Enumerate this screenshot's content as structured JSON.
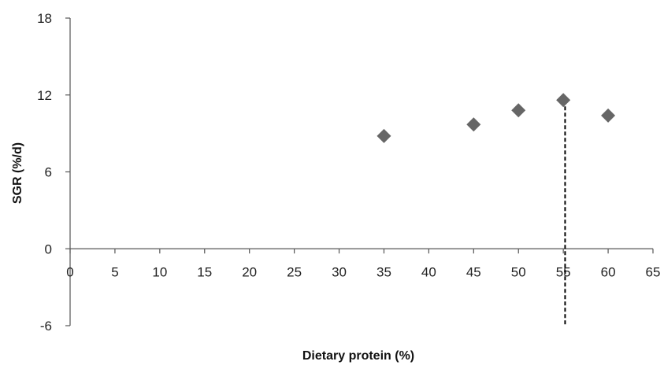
{
  "chart_data": {
    "type": "scatter",
    "title": "",
    "xlabel": "Dietary protein (%)",
    "ylabel": "SGR (%/d)",
    "xlim": [
      0,
      65
    ],
    "ylim": [
      -6,
      18
    ],
    "x_ticks": [
      0,
      5,
      10,
      15,
      20,
      25,
      30,
      35,
      40,
      45,
      50,
      55,
      60,
      65
    ],
    "y_ticks": [
      -6,
      0,
      6,
      12,
      18
    ],
    "grid": false,
    "legend": "none",
    "marker": "diamond",
    "marker_color": "#666666",
    "series": [
      {
        "x": [
          35,
          45,
          50,
          55,
          60
        ],
        "y": [
          8.8,
          9.7,
          10.8,
          11.6,
          10.4
        ]
      }
    ],
    "annotations": [
      {
        "type": "vertical-dashed-line",
        "x": 55.2,
        "y_from": -6,
        "y_to": 11.6,
        "color": "#000000"
      }
    ]
  }
}
